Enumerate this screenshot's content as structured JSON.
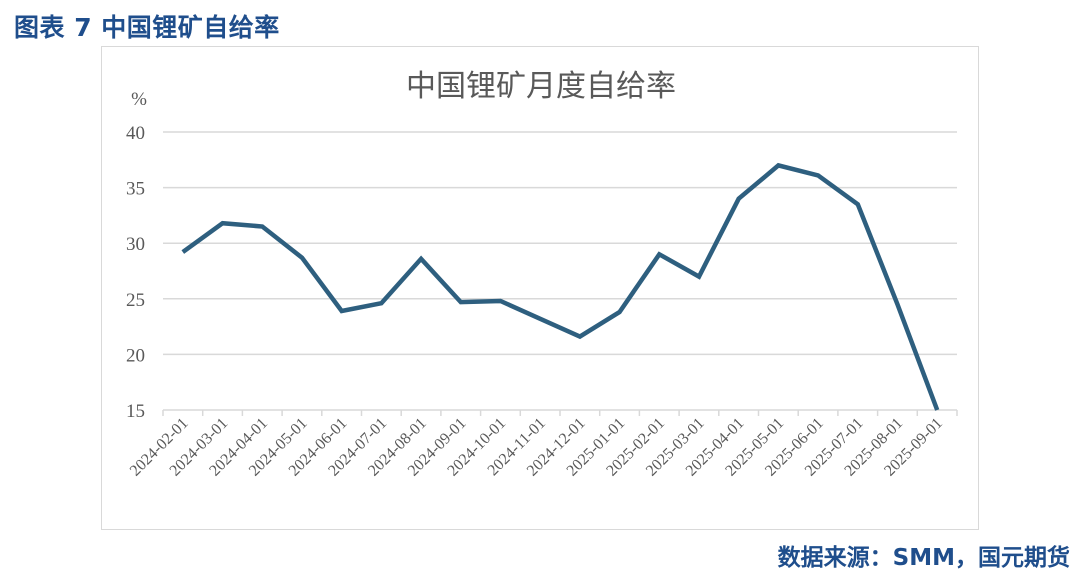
{
  "figure": {
    "title": "图表 7 中国锂矿自给率",
    "source": "数据来源：SMM，国元期货"
  },
  "colors": {
    "title_blue": "#1f4e8c",
    "line": "#2e5f7f",
    "grid": "#d9d9d9",
    "text": "#595959"
  },
  "chart_data": {
    "type": "line",
    "title": "中国锂矿月度自给率",
    "xlabel": "",
    "ylabel": "%",
    "ylim": [
      15,
      40
    ],
    "yticks": [
      15,
      20,
      25,
      30,
      35,
      40
    ],
    "grid": true,
    "legend": "none",
    "categories": [
      "2024-02-01",
      "2024-03-01",
      "2024-04-01",
      "2024-05-01",
      "2024-06-01",
      "2024-07-01",
      "2024-08-01",
      "2024-09-01",
      "2024-10-01",
      "2024-11-01",
      "2024-12-01",
      "2025-01-01",
      "2025-02-01",
      "2025-03-01",
      "2025-04-01",
      "2025-05-01",
      "2025-06-01",
      "2025-07-01",
      "2025-08-01",
      "2025-09-01"
    ],
    "series": [
      {
        "name": "中国锂矿月度自给率",
        "values": [
          29.2,
          31.8,
          31.5,
          28.7,
          23.9,
          24.6,
          28.6,
          24.7,
          24.8,
          23.2,
          21.6,
          23.8,
          29.0,
          27.0,
          34.0,
          37.0,
          36.1,
          33.5,
          24.5,
          15.0
        ]
      }
    ]
  }
}
